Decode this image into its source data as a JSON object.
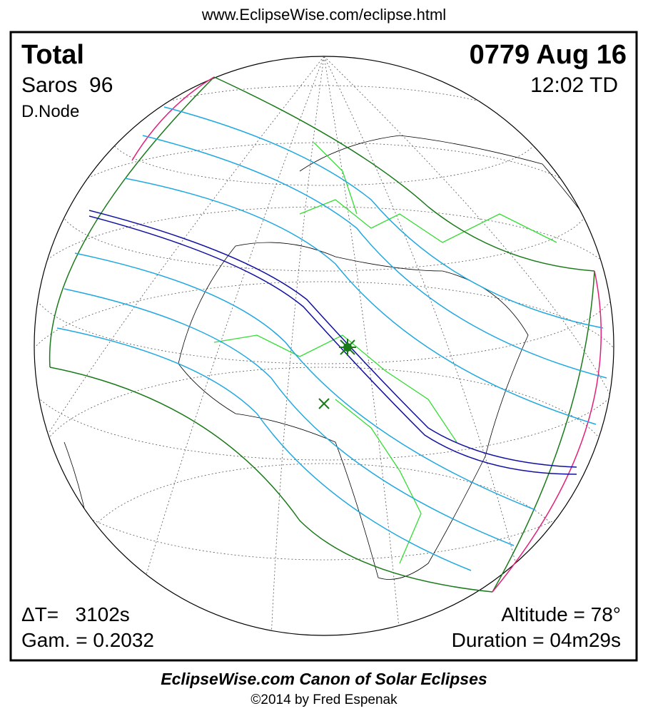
{
  "header": {
    "url": "www.EclipseWise.com/eclipse.html"
  },
  "eclipse": {
    "type": "Total",
    "date": "0779 Aug 16",
    "saros": "Saros  96",
    "time": "12:02 TD",
    "node": "D.Node",
    "delta_t": "ΔT=   3102s",
    "gamma": "Gam. = 0.2032",
    "altitude": "Altitude = 78°",
    "duration": "Duration = 04m29s"
  },
  "footer": {
    "title": "EclipseWise.com Canon of Solar Eclipses",
    "credit": "©2014 by Fred Espenak"
  }
}
